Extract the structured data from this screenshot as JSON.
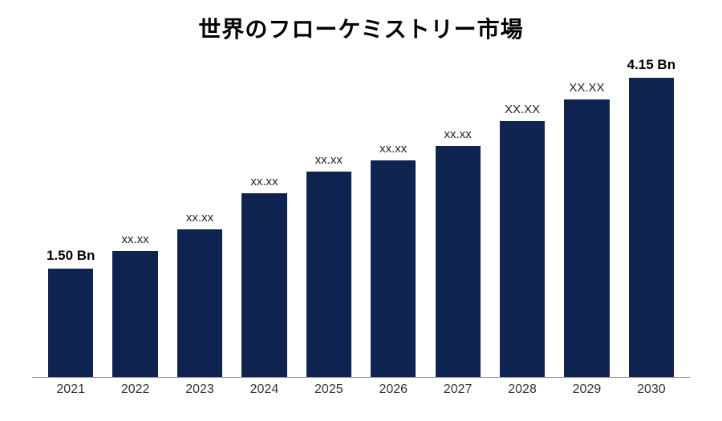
{
  "chart": {
    "type": "bar",
    "title": "世界のフローケミストリー市場",
    "title_fontsize": 28,
    "title_fontweight": "bold",
    "title_color": "#000000",
    "background_color": "#ffffff",
    "bar_color": "#0f2350",
    "axis_line_color": "#808080",
    "xtick_color": "#333333",
    "xtick_fontsize": 16,
    "label_fontsize": 15,
    "bold_label_fontsize": 17,
    "bar_width_ratio": 0.7,
    "ylim": [
      0,
      4.5
    ],
    "series": [
      {
        "year": "2021",
        "value": 1.5,
        "label": "1.50 Bn",
        "bold": true
      },
      {
        "year": "2022",
        "value": 1.75,
        "label": "xx.xx",
        "bold": false
      },
      {
        "year": "2023",
        "value": 2.05,
        "label": "xx.xx",
        "bold": false
      },
      {
        "year": "2024",
        "value": 2.55,
        "label": "xx.xx",
        "bold": false
      },
      {
        "year": "2025",
        "value": 2.85,
        "label": "xx.xx",
        "bold": false
      },
      {
        "year": "2026",
        "value": 3.0,
        "label": "xx.xx",
        "bold": false
      },
      {
        "year": "2027",
        "value": 3.2,
        "label": "xx.xx",
        "bold": false
      },
      {
        "year": "2028",
        "value": 3.55,
        "label": "XX.XX",
        "bold": false
      },
      {
        "year": "2029",
        "value": 3.85,
        "label": "XX.XX",
        "bold": false
      },
      {
        "year": "2030",
        "value": 4.15,
        "label": "4.15 Bn",
        "bold": true
      }
    ]
  }
}
